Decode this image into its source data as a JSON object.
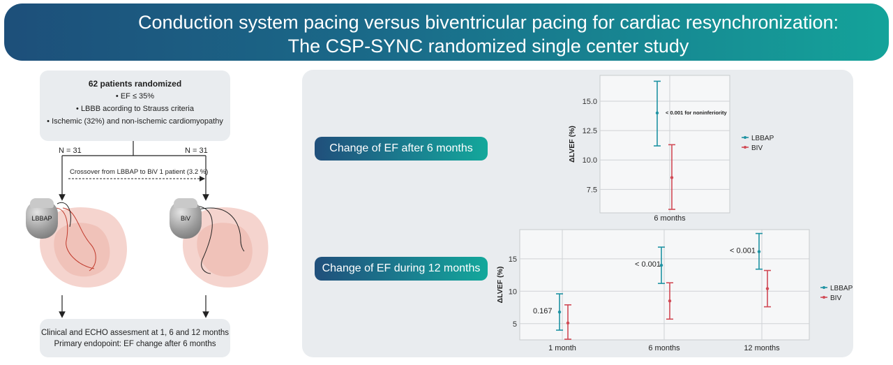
{
  "banner": {
    "line1": "Conduction system pacing versus biventricular pacing for cardiac resynchronization:",
    "line2": "The CSP-SYNC randomized single center study"
  },
  "enrollment": {
    "heading": "62 patients randomized",
    "criteria": [
      "• EF ≤ 35%",
      "• LBBB acording to Strauss criteria",
      "• Ischemic (32%) and non-ischemic cardiomyopathy"
    ],
    "arm_left_n": "N = 31",
    "arm_right_n": "N = 31",
    "crossover": "Crossover from LBBAP to BiV 1 patient (3.2 %)",
    "device_left": "LBBAP",
    "device_right": "BiV"
  },
  "followup": {
    "line1": "Clinical and ECHO assesment at 1, 6 and 12 months",
    "line2": "Primary endopoint: EF change after 6 months"
  },
  "colors": {
    "lbbap": "#1f93a3",
    "biv": "#d14a55",
    "banner_start": "#1d4f7a",
    "banner_end": "#14a39a"
  },
  "pills": {
    "six_months": "Change of EF after 6 months",
    "twelve_months": "Change of EF during 12 months"
  },
  "chart_data": [
    {
      "type": "scatter",
      "title": "",
      "xlabel": "",
      "ylabel": "ΔLVEF (%)",
      "categories": [
        "6 months"
      ],
      "ylim": [
        5.5,
        17.2
      ],
      "yticks": [
        "7.5",
        "10.0",
        "12.5",
        "15.0"
      ],
      "series": [
        {
          "name": "LBBAP",
          "mean": [
            14.0
          ],
          "lower": [
            11.2
          ],
          "upper": [
            16.7
          ]
        },
        {
          "name": "BIV",
          "mean": [
            8.5
          ],
          "lower": [
            5.8
          ],
          "upper": [
            11.3
          ]
        }
      ],
      "annotations": [
        "< 0.001 for noninferiority"
      ],
      "legend": "right",
      "grid": true
    },
    {
      "type": "scatter",
      "title": "",
      "xlabel": "",
      "ylabel": "ΔLVEF (%)",
      "categories": [
        "1 month",
        "6 months",
        "12 months"
      ],
      "ylim": [
        2.5,
        19.5
      ],
      "yticks": [
        "5",
        "10",
        "15"
      ],
      "series": [
        {
          "name": "LBBAP",
          "mean": [
            6.8,
            14.0,
            16.1
          ],
          "lower": [
            4.0,
            11.2,
            13.4
          ],
          "upper": [
            9.6,
            16.8,
            18.9
          ]
        },
        {
          "name": "BIV",
          "mean": [
            5.1,
            8.5,
            10.4
          ],
          "lower": [
            2.6,
            5.7,
            7.6
          ],
          "upper": [
            7.9,
            11.3,
            13.2
          ]
        }
      ],
      "annotations": [
        "0.167",
        "< 0.001",
        "< 0.001"
      ],
      "legend": "right",
      "grid": true
    }
  ]
}
